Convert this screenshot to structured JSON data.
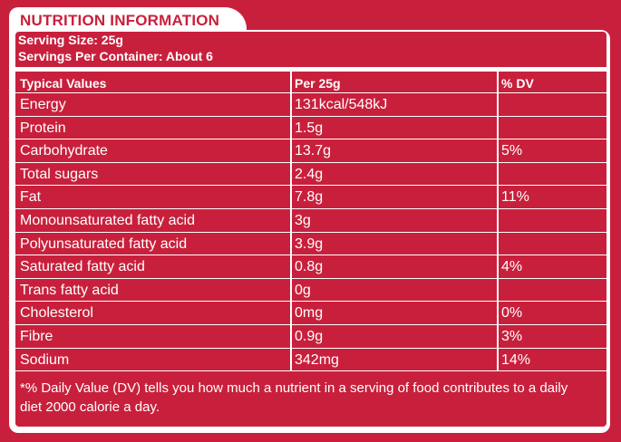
{
  "header": {
    "title": "NUTRITION INFORMATION"
  },
  "serving": {
    "size": "Serving Size: 25g",
    "per_container": "Servings Per Container: About 6"
  },
  "table": {
    "headers": [
      "Typical Values",
      "Per 25g",
      "% DV"
    ],
    "rows": [
      {
        "name": "Energy",
        "per": "131kcal/548kJ",
        "dv": ""
      },
      {
        "name": "Protein",
        "per": "1.5g",
        "dv": ""
      },
      {
        "name": "Carbohydrate",
        "per": "13.7g",
        "dv": "5%"
      },
      {
        "name": "Total sugars",
        "per": "2.4g",
        "dv": ""
      },
      {
        "name": "Fat",
        "per": "7.8g",
        "dv": "11%"
      },
      {
        "name": "Monounsaturated fatty acid",
        "per": "3g",
        "dv": ""
      },
      {
        "name": "Polyunsaturated fatty acid",
        "per": "3.9g",
        "dv": ""
      },
      {
        "name": "Saturated fatty acid",
        "per": "0.8g",
        "dv": "4%"
      },
      {
        "name": "Trans fatty acid",
        "per": "0g",
        "dv": ""
      },
      {
        "name": "Cholesterol",
        "per": "0mg",
        "dv": "0%"
      },
      {
        "name": "Fibre",
        "per": "0.9g",
        "dv": "3%"
      },
      {
        "name": "Sodium",
        "per": "342mg",
        "dv": "14%"
      }
    ]
  },
  "footnote": "*% Daily Value (DV) tells you how much a nutrient in a serving of food contributes to a daily diet 2000 calorie a day.",
  "colors": {
    "background": "#c8203c",
    "foreground": "#ffffff"
  }
}
